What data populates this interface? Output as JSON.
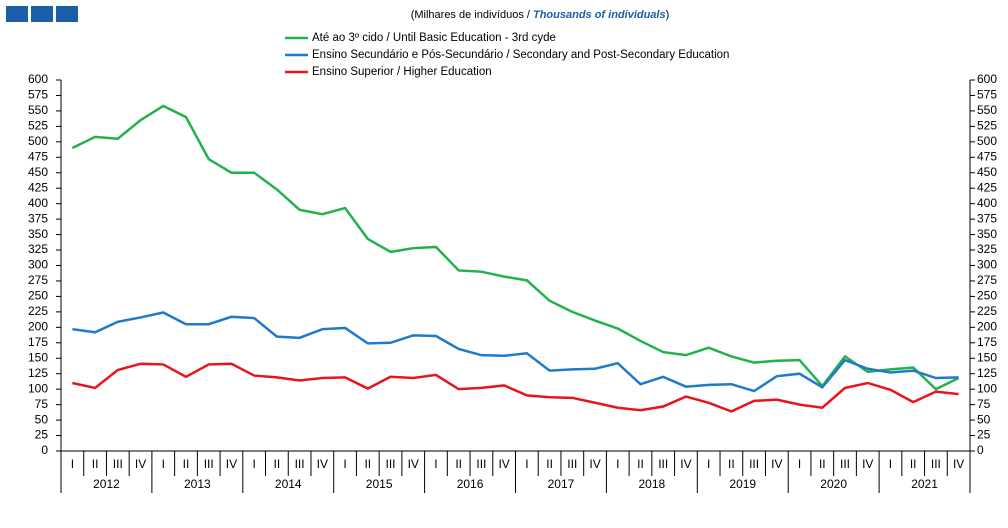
{
  "chart_data": {
    "type": "line",
    "subtitle": [
      "(Milhares de indivíduos / ",
      "Thousands of individuals",
      ")"
    ],
    "categories": [
      "I",
      "II",
      "III",
      "IV",
      "I",
      "II",
      "III",
      "IV",
      "I",
      "II",
      "III",
      "IV",
      "I",
      "II",
      "III",
      "IV",
      "I",
      "II",
      "III",
      "IV",
      "I",
      "II",
      "III",
      "IV",
      "I",
      "II",
      "III",
      "IV",
      "I",
      "II",
      "III",
      "IV",
      "I",
      "II",
      "III",
      "IV",
      "I",
      "II",
      "III",
      "IV"
    ],
    "years": [
      "2012",
      "2013",
      "2014",
      "2015",
      "2016",
      "2017",
      "2018",
      "2019",
      "2020",
      "2021"
    ],
    "series": [
      {
        "name": "Até ao 3º cido / Until Basic Education - 3rd cyde",
        "color": "#22b24c",
        "values": [
          490,
          508,
          505,
          535,
          558,
          540,
          472,
          450,
          450,
          423,
          390,
          383,
          393,
          343,
          322,
          328,
          330,
          292,
          290,
          282,
          276,
          243,
          225,
          211,
          198,
          178,
          160,
          155,
          167,
          153,
          143,
          146,
          147,
          105,
          153,
          128,
          132,
          135,
          100,
          118
        ]
      },
      {
        "name": "Ensino Secundário e Pós-Secundário / Secondary and Post-Secondary Education",
        "color": "#1f7ac8",
        "values": [
          197,
          192,
          209,
          216,
          224,
          205,
          205,
          217,
          215,
          185,
          183,
          197,
          199,
          174,
          175,
          187,
          186,
          165,
          155,
          154,
          158,
          130,
          132,
          133,
          142,
          108,
          120,
          104,
          107,
          108,
          97,
          121,
          125,
          103,
          147,
          133,
          127,
          130,
          118,
          119
        ]
      },
      {
        "name": "Ensino Superior / Higher Education",
        "color": "#e8141b",
        "values": [
          110,
          102,
          131,
          141,
          140,
          120,
          140,
          141,
          122,
          119,
          114,
          118,
          119,
          101,
          120,
          118,
          123,
          100,
          102,
          106,
          90,
          87,
          86,
          78,
          70,
          66,
          72,
          88,
          78,
          64,
          81,
          83,
          75,
          70,
          102,
          110,
          99,
          79,
          96,
          92
        ]
      }
    ],
    "ylim": [
      0,
      600
    ],
    "yticks": [
      0,
      25,
      50,
      75,
      100,
      125,
      150,
      175,
      200,
      225,
      250,
      275,
      300,
      325,
      350,
      375,
      400,
      425,
      450,
      475,
      500,
      525,
      550,
      575,
      600
    ]
  }
}
